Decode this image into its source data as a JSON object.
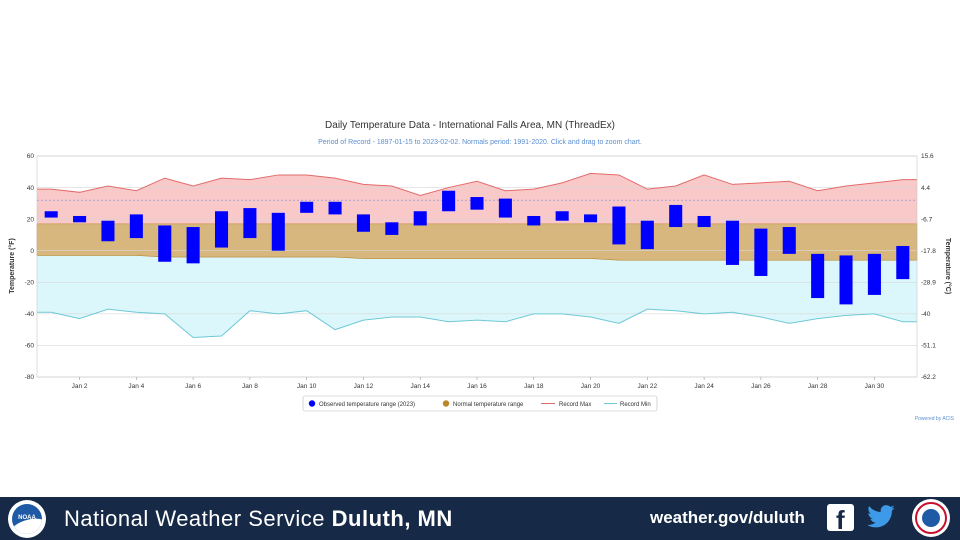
{
  "chart_data": {
    "type": "bar",
    "title": "Daily Temperature Data - International Falls Area, MN (ThreadEx)",
    "subtitle": "Period of Record - 1897-01-15 to 2023-02-02. Normals period: 1991-2020. Click and drag to zoom chart.",
    "ylabel_left": "Temperature (°F)",
    "ylabel_right": "Temperature (°C)",
    "ylim": [
      -80,
      60
    ],
    "yticks_left": [
      "60",
      "40",
      "20",
      "0",
      "-20",
      "-40",
      "-60",
      "-80"
    ],
    "yticks_right": [
      "15.6",
      "4.4",
      "-6.7",
      "-17.8",
      "-28.9",
      "-40",
      "-51.1",
      "-62.2"
    ],
    "x_ticks": [
      "Jan 2",
      "Jan 4",
      "Jan 6",
      "Jan 8",
      "Jan 10",
      "Jan 12",
      "Jan 14",
      "Jan 16",
      "Jan 18",
      "Jan 20",
      "Jan 22",
      "Jan 24",
      "Jan 26",
      "Jan 28",
      "Jan 30"
    ],
    "days": [
      1,
      2,
      3,
      4,
      5,
      6,
      7,
      8,
      9,
      10,
      11,
      12,
      13,
      14,
      15,
      16,
      17,
      18,
      19,
      20,
      21,
      22,
      23,
      24,
      25,
      26,
      27,
      28,
      29,
      30,
      31
    ],
    "series": [
      {
        "name": "Observed temperature range (2023)",
        "color": "#0000ff",
        "high": [
          25,
          22,
          19,
          23,
          16,
          15,
          25,
          27,
          24,
          31,
          31,
          23,
          18,
          25,
          38,
          34,
          33,
          22,
          25,
          23,
          28,
          19,
          29,
          22,
          19,
          14,
          15,
          -2,
          -3,
          -2,
          3
        ],
        "low": [
          21,
          18,
          6,
          8,
          -7,
          -8,
          2,
          8,
          0,
          24,
          23,
          12,
          10,
          16,
          25,
          26,
          21,
          16,
          19,
          18,
          4,
          1,
          15,
          15,
          -9,
          -16,
          -2,
          -30,
          -34,
          -28,
          -18
        ]
      },
      {
        "name": "Normal temperature range",
        "color": "#b8862b",
        "high": [
          17,
          17,
          17,
          17,
          17,
          17,
          17,
          17,
          17,
          17,
          17,
          17,
          17,
          17,
          17,
          17,
          17,
          17,
          17,
          17,
          17,
          17,
          17,
          17,
          17,
          17,
          17,
          17,
          17,
          17,
          17
        ],
        "low": [
          -3,
          -3,
          -3,
          -3,
          -4,
          -4,
          -4,
          -4,
          -4,
          -4,
          -4,
          -5,
          -5,
          -5,
          -5,
          -5,
          -5,
          -5,
          -5,
          -5,
          -6,
          -6,
          -6,
          -6,
          -6,
          -6,
          -6,
          -6,
          -6,
          -6,
          -6
        ]
      },
      {
        "name": "Record Max",
        "color": "#e36b6b",
        "values": [
          39,
          37,
          41,
          38,
          46,
          41,
          46,
          45,
          48,
          48,
          46,
          42,
          41,
          35,
          40,
          44,
          38,
          39,
          43,
          49,
          48,
          39,
          41,
          48,
          42,
          43,
          44,
          38,
          41,
          43,
          45
        ]
      },
      {
        "name": "Record Min",
        "color": "#6ec9d6",
        "values": [
          -39,
          -43,
          -37,
          -39,
          -40,
          -55,
          -54,
          -38,
          -40,
          -38,
          -50,
          -44,
          -42,
          -42,
          -45,
          -44,
          -45,
          -40,
          -40,
          -42,
          -46,
          -37,
          -38,
          -40,
          -39,
          -42,
          -46,
          -43,
          -41,
          -40,
          -45
        ]
      }
    ],
    "legend": {
      "observed": "Observed temperature range (2023)",
      "normal": "Normal temperature range",
      "record_max": "Record Max",
      "record_min": "Record Min"
    },
    "credit": "Powered by ACIS"
  },
  "footer": {
    "agency_part1": "National Weather Service",
    "agency_part2": "Duluth, MN",
    "website": "weather.gov/duluth",
    "noaa_logo_text": "NOAA"
  },
  "icons": [
    "noaa-logo",
    "facebook-icon",
    "twitter-icon",
    "nws-logo"
  ],
  "colors": {
    "footer_bg": "#162a47",
    "record_band_fill": "#f9c8c8",
    "normal_band_fill": "#d7b77d",
    "cold_band_fill": "#dcf7fb"
  }
}
